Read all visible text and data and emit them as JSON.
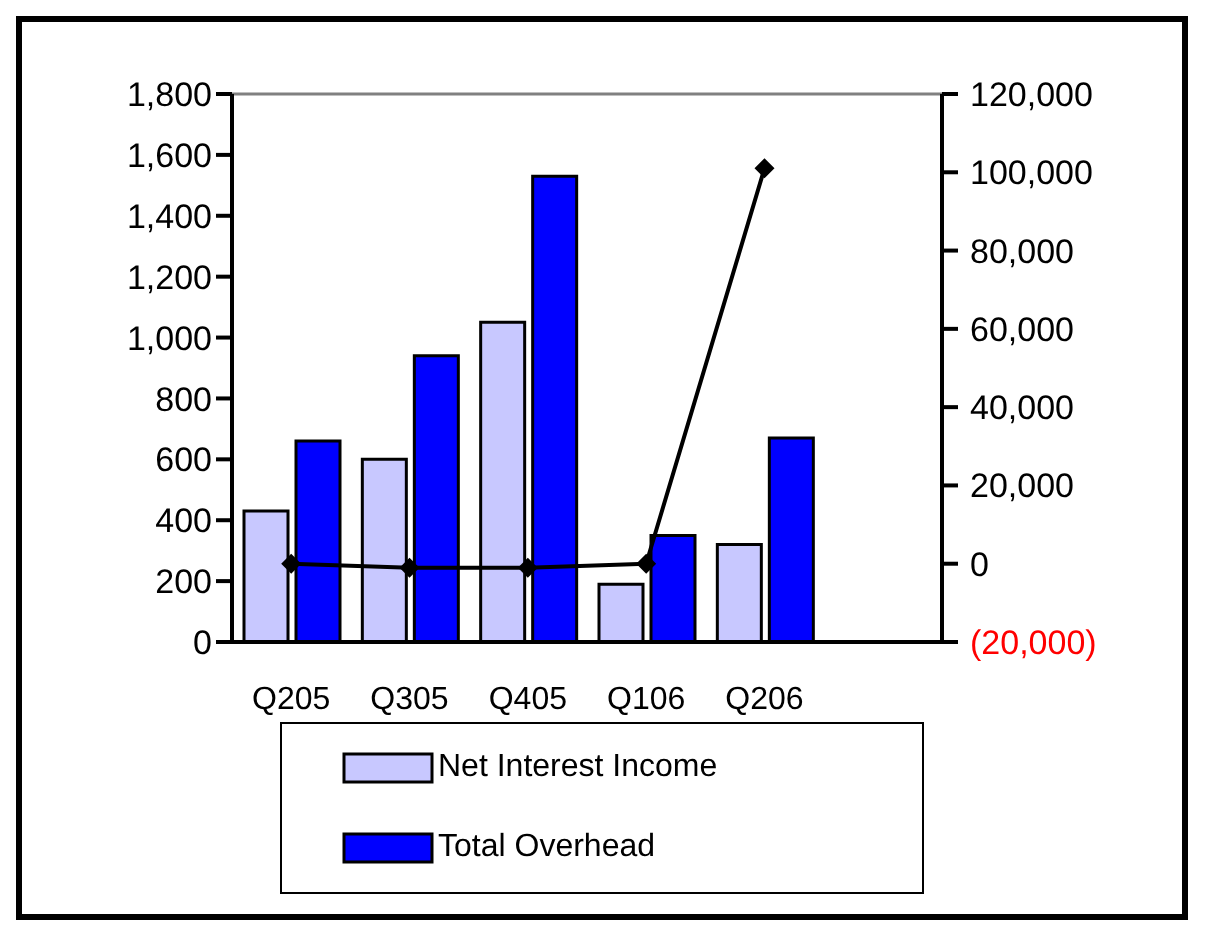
{
  "chart_data": {
    "type": "bar",
    "categories": [
      "Q205",
      "Q305",
      "Q405",
      "Q106",
      "Q206",
      null
    ],
    "series": [
      {
        "name": "Net Interest Income",
        "color": "#c8c8ff",
        "values": [
          430,
          600,
          1050,
          190,
          320,
          null
        ]
      },
      {
        "name": "Total Overhead",
        "color": "#0000ff",
        "values": [
          660,
          940,
          1530,
          350,
          670,
          null
        ]
      },
      {
        "type": "line",
        "axis": "y2",
        "color": "#000000",
        "marker": "diamond",
        "values": [
          0,
          -1000,
          -1000,
          0,
          101000,
          null
        ]
      }
    ],
    "ylim": [
      0,
      1800
    ],
    "yticks": [
      {
        "value": 0,
        "label": "0"
      },
      {
        "value": 200,
        "label": "200"
      },
      {
        "value": 400,
        "label": "400"
      },
      {
        "value": 600,
        "label": "600"
      },
      {
        "value": 800,
        "label": "800"
      },
      {
        "value": 1000,
        "label": "1,000"
      },
      {
        "value": 1200,
        "label": "1,200"
      },
      {
        "value": 1400,
        "label": "1,400"
      },
      {
        "value": 1600,
        "label": "1,600"
      },
      {
        "value": 1800,
        "label": "1,800"
      }
    ],
    "y2lim": [
      -20000,
      120000
    ],
    "y2ticks": [
      {
        "value": -20000,
        "label": "(20,000)"
      },
      {
        "value": 0,
        "label": "0"
      },
      {
        "value": 20000,
        "label": "20,000"
      },
      {
        "value": 40000,
        "label": "40,000"
      },
      {
        "value": 60000,
        "label": "60,000"
      },
      {
        "value": 80000,
        "label": "80,000"
      },
      {
        "value": 100000,
        "label": "100,000"
      },
      {
        "value": 120000,
        "label": "120,000"
      }
    ],
    "legend": "bottom"
  }
}
